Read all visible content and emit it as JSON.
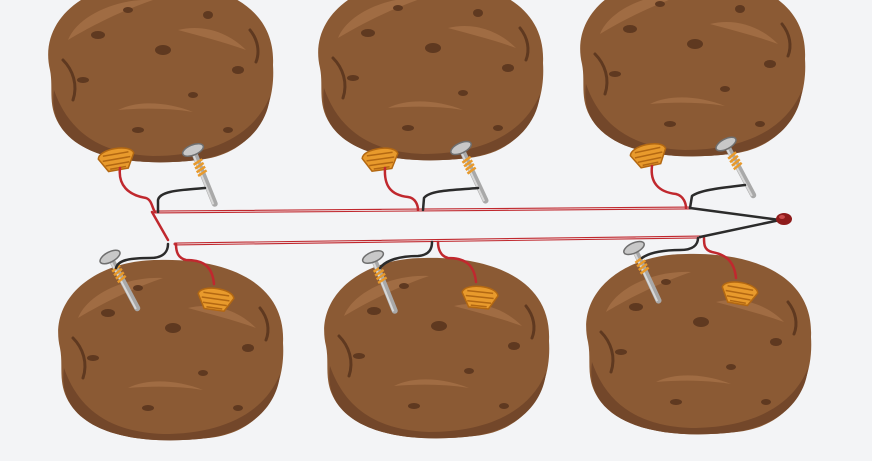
{
  "colors": {
    "background": "#f3f4f6",
    "potato_skin": "#8b5a34",
    "potato_shadow": "#73472a",
    "potato_spot": "#5f3920",
    "potato_highlight": "#a06c43",
    "copper": "#e89a2c",
    "copper_dark": "#b36812",
    "zinc_nail": "#a9a9a9",
    "zinc_nail_dark": "#6f6f6f",
    "wire_red": "#c0282e",
    "wire_black": "#2b2b2b",
    "led": "#8e1b1b"
  },
  "diagram": {
    "subject": "potato battery",
    "cell_count": 6,
    "cells": [
      {
        "id": "top-1",
        "electrodes": [
          "copper",
          "zinc-nail"
        ]
      },
      {
        "id": "top-2",
        "electrodes": [
          "copper",
          "zinc-nail"
        ]
      },
      {
        "id": "top-3",
        "electrodes": [
          "copper",
          "zinc-nail"
        ]
      },
      {
        "id": "bottom-1",
        "electrodes": [
          "zinc-nail",
          "copper"
        ]
      },
      {
        "id": "bottom-2",
        "electrodes": [
          "zinc-nail",
          "copper"
        ]
      },
      {
        "id": "bottom-3",
        "electrodes": [
          "zinc-nail",
          "copper"
        ]
      }
    ],
    "load": "led",
    "icons": [
      "potato-icon",
      "copper-coin-icon",
      "zinc-nail-icon",
      "led-icon",
      "wire-icon"
    ]
  }
}
